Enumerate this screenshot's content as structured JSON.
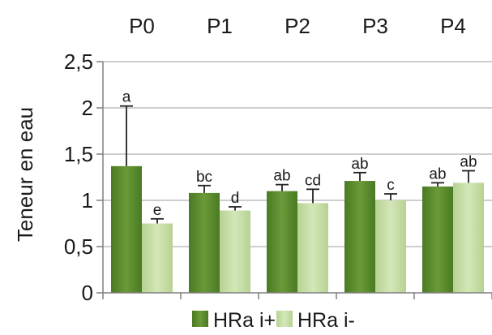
{
  "chart_data": {
    "type": "bar",
    "categories": [
      "P0",
      "P1",
      "P2",
      "P3",
      "P4"
    ],
    "ylabel": "Teneur en eau",
    "ylim": [
      0,
      2.5
    ],
    "yticks": [
      0,
      0.5,
      1,
      1.5,
      2,
      2.5
    ],
    "ytick_labels": [
      "0",
      "0,5",
      "1",
      "1,5",
      "2",
      "2,5"
    ],
    "grid": true,
    "legend_position": "bottom",
    "series": [
      {
        "name": "HRa i+",
        "color": "#5a8a2c",
        "values": [
          1.37,
          1.08,
          1.1,
          1.21,
          1.15
        ],
        "errors": [
          0.65,
          0.08,
          0.07,
          0.09,
          0.04
        ],
        "letters": [
          "a",
          "bc",
          "ab",
          "ab",
          "ab"
        ]
      },
      {
        "name": "HRa i-",
        "color": "#c4dca3",
        "values": [
          0.75,
          0.89,
          0.97,
          1.0,
          1.19
        ],
        "errors": [
          0.05,
          0.04,
          0.15,
          0.07,
          0.13
        ],
        "letters": [
          "e",
          "d",
          "cd",
          "c",
          "ab"
        ]
      }
    ]
  }
}
